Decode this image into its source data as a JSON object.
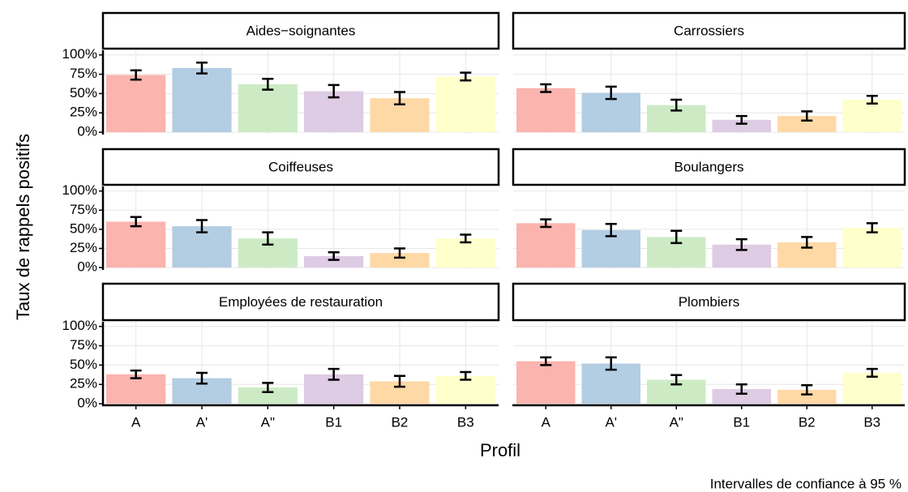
{
  "y_label": "Taux de rappels positifs",
  "x_label": "Profil",
  "caption": "Intervalles de confiance à 95 %",
  "chart_data": [
    {
      "type": "bar",
      "title": "Aides−soignantes",
      "categories": [
        "A",
        "A'",
        "A\"",
        "B1",
        "B2",
        "B3"
      ],
      "values": [
        74,
        83,
        62,
        53,
        44,
        72
      ],
      "errors": [
        6,
        7,
        7,
        8,
        8,
        5
      ],
      "colors": [
        "#FBB4AE",
        "#B3CDE3",
        "#CCEBC5",
        "#DECBE4",
        "#FED9A6",
        "#FFFFCC"
      ],
      "ylim": [
        -2,
        106
      ],
      "yticks": [
        {
          "value": 0,
          "label": "0%"
        },
        {
          "value": 25,
          "label": "25%"
        },
        {
          "value": 50,
          "label": "50%"
        },
        {
          "value": 75,
          "label": "75%"
        },
        {
          "value": 100,
          "label": "100%"
        }
      ],
      "grid": true
    },
    {
      "type": "bar",
      "title": "Carrossiers",
      "categories": [
        "A",
        "A'",
        "A\"",
        "B1",
        "B2",
        "B3"
      ],
      "values": [
        57,
        51,
        35,
        16,
        21,
        42
      ],
      "errors": [
        5,
        8,
        7,
        5,
        6,
        5
      ],
      "colors": [
        "#FBB4AE",
        "#B3CDE3",
        "#CCEBC5",
        "#DECBE4",
        "#FED9A6",
        "#FFFFCC"
      ],
      "ylim": [
        -2,
        106
      ],
      "yticks": [
        {
          "value": 0,
          "label": "0%"
        },
        {
          "value": 25,
          "label": "25%"
        },
        {
          "value": 50,
          "label": "50%"
        },
        {
          "value": 75,
          "label": "75%"
        },
        {
          "value": 100,
          "label": "100%"
        }
      ],
      "grid": true
    },
    {
      "type": "bar",
      "title": "Coiffeuses",
      "categories": [
        "A",
        "A'",
        "A\"",
        "B1",
        "B2",
        "B3"
      ],
      "values": [
        60,
        54,
        38,
        15,
        19,
        38
      ],
      "errors": [
        6,
        8,
        8,
        5,
        6,
        5
      ],
      "colors": [
        "#FBB4AE",
        "#B3CDE3",
        "#CCEBC5",
        "#DECBE4",
        "#FED9A6",
        "#FFFFCC"
      ],
      "ylim": [
        -2,
        106
      ],
      "yticks": [
        {
          "value": 0,
          "label": "0%"
        },
        {
          "value": 25,
          "label": "25%"
        },
        {
          "value": 50,
          "label": "50%"
        },
        {
          "value": 75,
          "label": "75%"
        },
        {
          "value": 100,
          "label": "100%"
        }
      ],
      "grid": true
    },
    {
      "type": "bar",
      "title": "Boulangers",
      "categories": [
        "A",
        "A'",
        "A\"",
        "B1",
        "B2",
        "B3"
      ],
      "values": [
        58,
        49,
        40,
        30,
        33,
        52
      ],
      "errors": [
        5,
        8,
        8,
        7,
        7,
        6
      ],
      "colors": [
        "#FBB4AE",
        "#B3CDE3",
        "#CCEBC5",
        "#DECBE4",
        "#FED9A6",
        "#FFFFCC"
      ],
      "ylim": [
        -2,
        106
      ],
      "yticks": [
        {
          "value": 0,
          "label": "0%"
        },
        {
          "value": 25,
          "label": "25%"
        },
        {
          "value": 50,
          "label": "50%"
        },
        {
          "value": 75,
          "label": "75%"
        },
        {
          "value": 100,
          "label": "100%"
        }
      ],
      "grid": true
    },
    {
      "type": "bar",
      "title": "Employées de restauration",
      "categories": [
        "A",
        "A'",
        "A\"",
        "B1",
        "B2",
        "B3"
      ],
      "values": [
        38,
        33,
        21,
        38,
        29,
        36
      ],
      "errors": [
        5,
        7,
        6,
        7,
        7,
        5
      ],
      "colors": [
        "#FBB4AE",
        "#B3CDE3",
        "#CCEBC5",
        "#DECBE4",
        "#FED9A6",
        "#FFFFCC"
      ],
      "ylim": [
        -2,
        106
      ],
      "yticks": [
        {
          "value": 0,
          "label": "0%"
        },
        {
          "value": 25,
          "label": "25%"
        },
        {
          "value": 50,
          "label": "50%"
        },
        {
          "value": 75,
          "label": "75%"
        },
        {
          "value": 100,
          "label": "100%"
        }
      ],
      "grid": true
    },
    {
      "type": "bar",
      "title": "Plombiers",
      "categories": [
        "A",
        "A'",
        "A\"",
        "B1",
        "B2",
        "B3"
      ],
      "values": [
        55,
        52,
        31,
        19,
        18,
        40
      ],
      "errors": [
        5,
        8,
        6,
        6,
        6,
        5
      ],
      "colors": [
        "#FBB4AE",
        "#B3CDE3",
        "#CCEBC5",
        "#DECBE4",
        "#FED9A6",
        "#FFFFCC"
      ],
      "ylim": [
        -2,
        106
      ],
      "yticks": [
        {
          "value": 0,
          "label": "0%"
        },
        {
          "value": 25,
          "label": "25%"
        },
        {
          "value": 50,
          "label": "50%"
        },
        {
          "value": 75,
          "label": "75%"
        },
        {
          "value": 100,
          "label": "100%"
        }
      ],
      "grid": true
    }
  ]
}
